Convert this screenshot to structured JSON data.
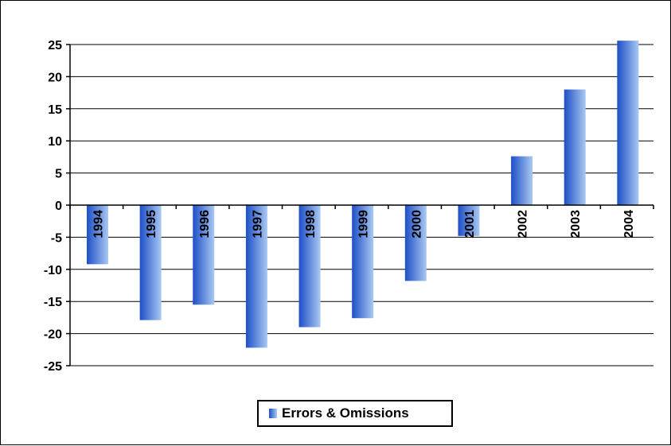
{
  "chart_data": {
    "type": "bar",
    "categories": [
      "1994",
      "1995",
      "1996",
      "1997",
      "1998",
      "1999",
      "2000",
      "2001",
      "2002",
      "2003",
      "2004"
    ],
    "series": [
      {
        "name": "Errors & Omissions",
        "values": [
          -9.2,
          -17.9,
          -15.5,
          -22.2,
          -19.0,
          -17.6,
          -11.8,
          -4.8,
          7.6,
          18.0,
          25.6
        ]
      }
    ],
    "title": "",
    "xlabel": "",
    "ylabel": "",
    "ylim": [
      -25,
      25
    ],
    "yticks": [
      25,
      20,
      15,
      10,
      5,
      0,
      -5,
      -10,
      -15,
      -20,
      -25
    ],
    "grid": true,
    "legend_position": "bottom",
    "colors": {
      "bar_dark": "#1d4fc7",
      "bar_light": "#aac8f2",
      "grid": "#000000"
    }
  }
}
